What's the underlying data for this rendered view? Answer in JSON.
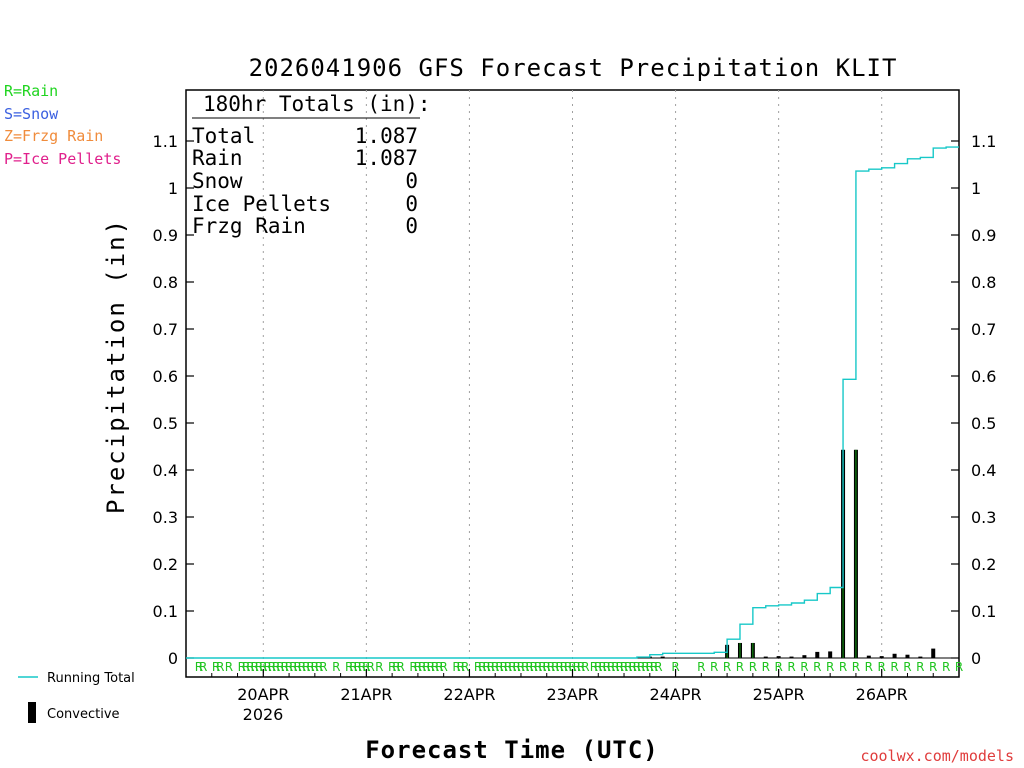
{
  "chart_data": {
    "type": "bar",
    "title": "2026041906 GFS Forecast Precipitation KLIT",
    "xlabel": "Forecast Time (UTC)",
    "ylabel": "Precipitation (in)",
    "ylim": [
      0,
      1.2
    ],
    "yticks": [
      0,
      0.1,
      0.2,
      0.3,
      0.4,
      0.5,
      0.6,
      0.7,
      0.8,
      0.9,
      1,
      1.1
    ],
    "ytick_labels": [
      "0",
      "0.1",
      "0.2",
      "0.3",
      "0.4",
      "0.5",
      "0.6",
      "0.7",
      "0.8",
      "0.9",
      "1",
      "1.1"
    ],
    "x_unit": "forecast hour",
    "xlim": [
      0,
      180
    ],
    "x_tick_hours": [
      18,
      42,
      66,
      90,
      114,
      138,
      162
    ],
    "x_tick_labels": [
      "20APR",
      "21APR",
      "22APR",
      "23APR",
      "24APR",
      "25APR",
      "26APR"
    ],
    "x_year_label": "2026",
    "grid": "vertical dotted at day ticks",
    "bars_convective": [
      {
        "hour": 108,
        "value": 0.003
      },
      {
        "hour": 111,
        "value": 0.003
      },
      {
        "hour": 126,
        "value": 0.028
      },
      {
        "hour": 129,
        "value": 0.032
      },
      {
        "hour": 132,
        "value": 0.032
      },
      {
        "hour": 135,
        "value": 0.003
      },
      {
        "hour": 138,
        "value": 0.004
      },
      {
        "hour": 141,
        "value": 0.003
      },
      {
        "hour": 144,
        "value": 0.006
      },
      {
        "hour": 147,
        "value": 0.013
      },
      {
        "hour": 150,
        "value": 0.014
      },
      {
        "hour": 153,
        "value": 0.443
      },
      {
        "hour": 156,
        "value": 0.443
      },
      {
        "hour": 159,
        "value": 0.005
      },
      {
        "hour": 162,
        "value": 0.004
      },
      {
        "hour": 165,
        "value": 0.009
      },
      {
        "hour": 168,
        "value": 0.007
      },
      {
        "hour": 171,
        "value": 0.003
      },
      {
        "hour": 174,
        "value": 0.02
      }
    ],
    "series": [
      {
        "name": "Running Total",
        "color": "#17c8c8",
        "points": [
          [
            0,
            0
          ],
          [
            102,
            0
          ],
          [
            105,
            0.002
          ],
          [
            108,
            0.007
          ],
          [
            111,
            0.01
          ],
          [
            117,
            0.01
          ],
          [
            123,
            0.012
          ],
          [
            126,
            0.04
          ],
          [
            129,
            0.072
          ],
          [
            132,
            0.107
          ],
          [
            135,
            0.111
          ],
          [
            138,
            0.113
          ],
          [
            141,
            0.117
          ],
          [
            144,
            0.123
          ],
          [
            147,
            0.137
          ],
          [
            150,
            0.15
          ],
          [
            153,
            0.593
          ],
          [
            156,
            1.036
          ],
          [
            159,
            1.04
          ],
          [
            162,
            1.043
          ],
          [
            165,
            1.052
          ],
          [
            168,
            1.062
          ],
          [
            171,
            1.065
          ],
          [
            174,
            1.085
          ],
          [
            177,
            1.087
          ],
          [
            180,
            1.087
          ]
        ]
      }
    ],
    "precip_type_markers": {
      "symbol": "R",
      "hours": [
        3,
        4,
        7,
        8,
        10,
        13,
        14,
        15,
        16,
        17,
        18,
        19,
        20,
        21,
        22,
        23,
        24,
        25,
        26,
        27,
        28,
        29,
        30,
        31,
        32,
        35,
        38,
        39,
        40,
        41,
        42,
        43,
        45,
        48,
        49,
        50,
        53,
        54,
        55,
        56,
        57,
        58,
        59,
        60,
        63,
        64,
        65,
        68,
        69,
        70,
        71,
        72,
        73,
        74,
        75,
        76,
        77,
        78,
        79,
        80,
        81,
        82,
        83,
        84,
        85,
        86,
        87,
        88,
        89,
        90,
        91,
        92,
        93,
        95,
        96,
        97,
        98,
        99,
        100,
        101,
        102,
        103,
        104,
        105,
        106,
        107,
        108,
        109,
        110,
        114,
        120,
        123,
        126,
        129,
        132,
        135,
        138,
        141,
        144,
        147,
        150,
        153,
        156,
        159,
        162,
        165,
        168,
        171,
        174,
        177,
        180
      ]
    }
  },
  "totals_box": {
    "header": "180hr Totals (in):",
    "rows": [
      {
        "label": "Total",
        "value": "1.087"
      },
      {
        "label": "Rain",
        "value": "1.087"
      },
      {
        "label": "Snow",
        "value": "0"
      },
      {
        "label": "Ice Pellets",
        "value": "0"
      },
      {
        "label": "Frzg Rain",
        "value": "0"
      }
    ]
  },
  "type_legend": [
    {
      "text": "R=Rain",
      "color": "#1fd41f"
    },
    {
      "text": "S=Snow",
      "color": "#3a5fe0"
    },
    {
      "text": "Z=Frzg Rain",
      "color": "#f08c3c"
    },
    {
      "text": "P=Ice Pellets",
      "color": "#e0208c"
    }
  ],
  "bottom_legend": {
    "running_total_label": "Running Total",
    "convective_label": "Convective"
  },
  "credit": "coolwx.com/models"
}
